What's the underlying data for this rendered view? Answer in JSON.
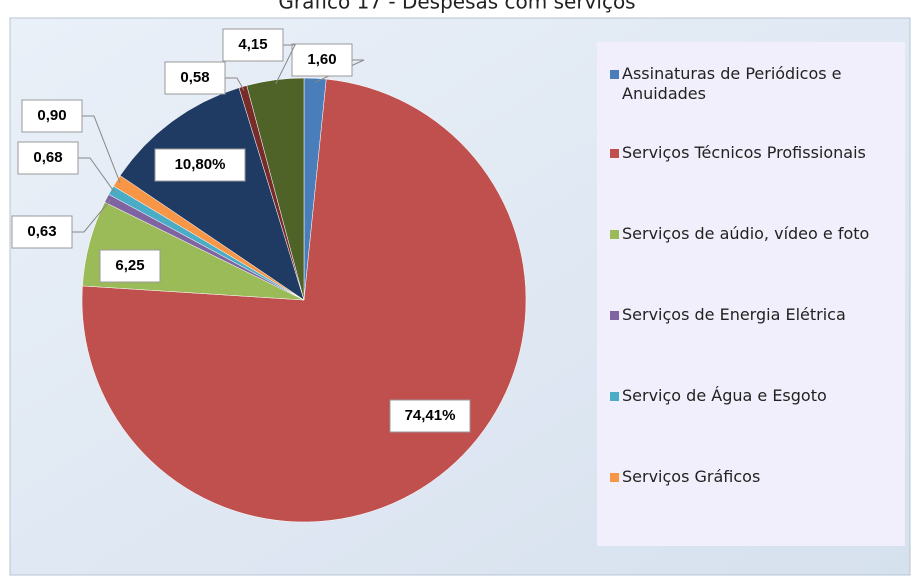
{
  "chart_data": {
    "type": "pie",
    "title": "Gráfico 17 - Despesas com serviços",
    "categories": [
      "Assinaturas de Periódicos e Anuidades",
      "Serviços Técnicos Profissionais",
      "Serviços de aúdio, vídeo e foto",
      "Serviços de Energia Elétrica",
      "Serviço de Água e Esgoto",
      "Serviços Gráficos",
      null,
      null,
      null
    ],
    "values": [
      1.6,
      74.41,
      6.25,
      0.63,
      0.68,
      0.9,
      10.8,
      0.58,
      4.15
    ],
    "value_labels": [
      "1,60",
      "74,41%",
      "6,25",
      "0,63",
      "0,68",
      "0,90",
      "10,80%",
      "0,58",
      "4,15"
    ],
    "colors": [
      "#4a7ebb",
      "#c0504d",
      "#9bbb59",
      "#8064a2",
      "#4bacc6",
      "#f79646",
      "#1f3b64",
      "#772c2a",
      "#4f6228"
    ],
    "legend": "right"
  }
}
